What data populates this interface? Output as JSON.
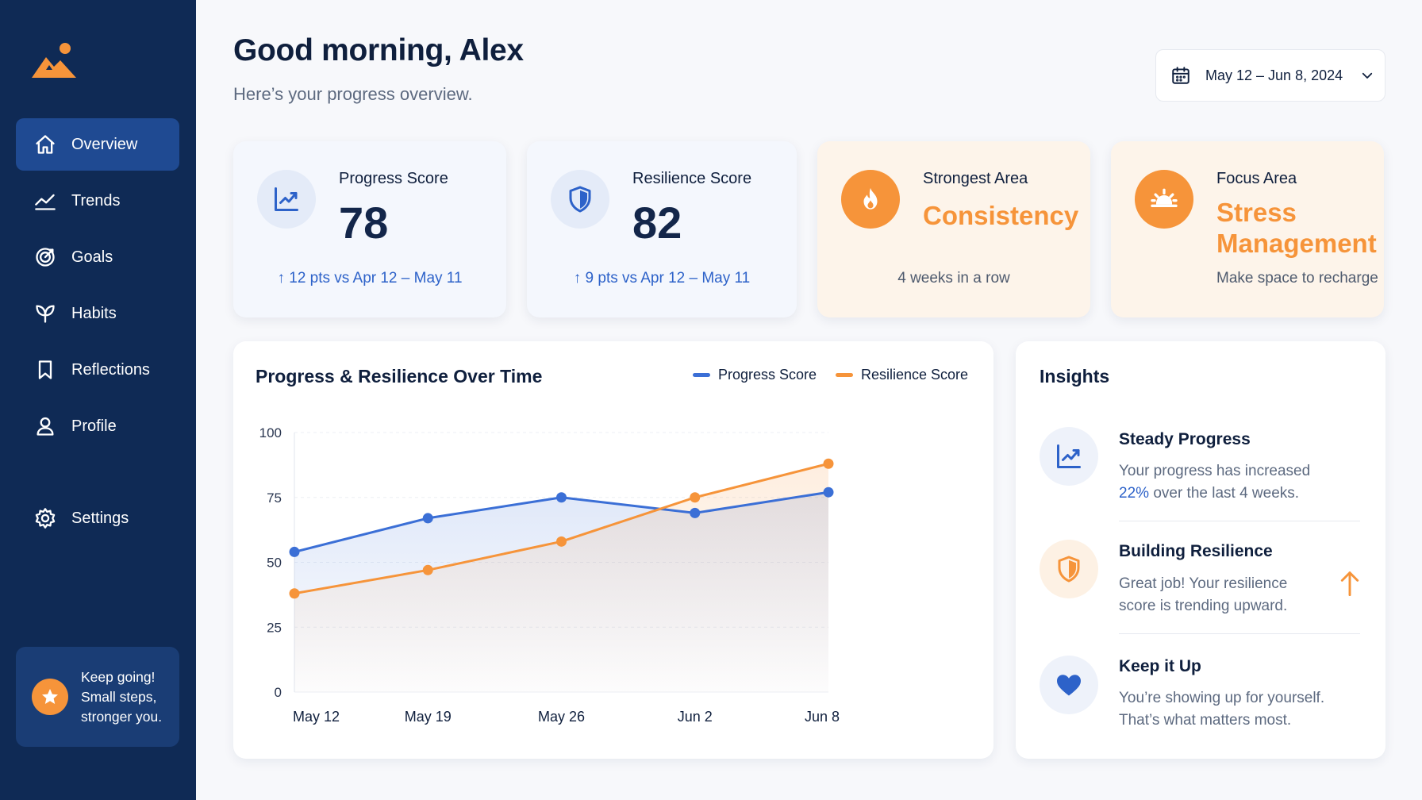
{
  "sidebar": {
    "logo_icon": "mountain-sun-icon",
    "items": [
      {
        "label": "Overview",
        "icon": "home-icon",
        "active": true
      },
      {
        "label": "Trends",
        "icon": "trend-line-icon"
      },
      {
        "label": "Goals",
        "icon": "target-icon"
      },
      {
        "label": "Habits",
        "icon": "leaf-icon"
      },
      {
        "label": "Reflections",
        "icon": "bookmark-icon"
      },
      {
        "label": "Profile",
        "icon": "user-icon"
      },
      {
        "label": "Settings",
        "icon": "gear-icon"
      }
    ],
    "encourage": {
      "line1": "Keep going!",
      "line2": "Small steps,",
      "line3": "stronger you.",
      "icon": "star-icon"
    }
  },
  "header": {
    "greeting": "Good morning, Alex",
    "subtitle": "Here’s your progress overview.",
    "date_range": "May 12 – Jun 8, 2024"
  },
  "cards": {
    "progress": {
      "label": "Progress Score",
      "value": "78",
      "delta": "12 pts vs Apr 12 – May 11",
      "icon": "trend-chart-icon"
    },
    "resilience": {
      "label": "Resilience Score",
      "value": "82",
      "delta": "9 pts vs Apr 12 – May 11",
      "icon": "shield-icon"
    },
    "strongest": {
      "label": "Strongest Area",
      "value": "Consistency",
      "foot": "4 weeks in a row",
      "icon": "flame-icon"
    },
    "focus": {
      "label": "Focus Area",
      "value_line1": "Stress",
      "value_line2": "Management",
      "foot": "Make space to recharge",
      "icon": "sunrise-icon"
    }
  },
  "chart_panel": {
    "title": "Progress & Resilience Over Time",
    "legend": [
      "Progress Score",
      "Resilience Score"
    ]
  },
  "chart_data": {
    "type": "line",
    "title": "Progress & Resilience Over Time",
    "categories": [
      "May 12",
      "May 19",
      "May 26",
      "Jun 2",
      "Jun 8"
    ],
    "x": [
      0,
      1,
      2,
      3,
      4
    ],
    "series": [
      {
        "name": "Progress Score",
        "color": "#3b6fd6",
        "x": [
          0,
          1,
          2,
          3,
          4
        ],
        "values": [
          54,
          67,
          75,
          69,
          77
        ]
      },
      {
        "name": "Resilience Score",
        "color": "#f6943a",
        "x": [
          0,
          1,
          2,
          3,
          4
        ],
        "values": [
          38,
          47,
          58,
          75,
          88
        ]
      }
    ],
    "ylim": [
      0,
      100
    ],
    "yticks": [
      "0",
      "25",
      "50",
      "75",
      "100"
    ],
    "grid": true,
    "legend_position": "top-right"
  },
  "insights": {
    "title": "Insights",
    "items": [
      {
        "title": "Steady Progress",
        "body_pre": "Your progress has increased",
        "highlight": "22%",
        "body_post": "over the last 4 weeks.",
        "icon": "trend-chart-icon"
      },
      {
        "title": "Building Resilience",
        "line1": "Great job! Your resilience",
        "line2": "score is trending upward.",
        "icon": "shield-icon",
        "trend_icon": "arrow-up-icon"
      },
      {
        "title": "Keep it Up",
        "line1": "You’re showing up for yourself.",
        "line2": "That’s what matters most.",
        "icon": "heart-icon"
      }
    ]
  },
  "colors": {
    "sidebar_bg": "#0f2a55",
    "active_nav": "#1f4a92",
    "accent_blue": "#2d62c9",
    "accent_orange": "#f6943a"
  }
}
